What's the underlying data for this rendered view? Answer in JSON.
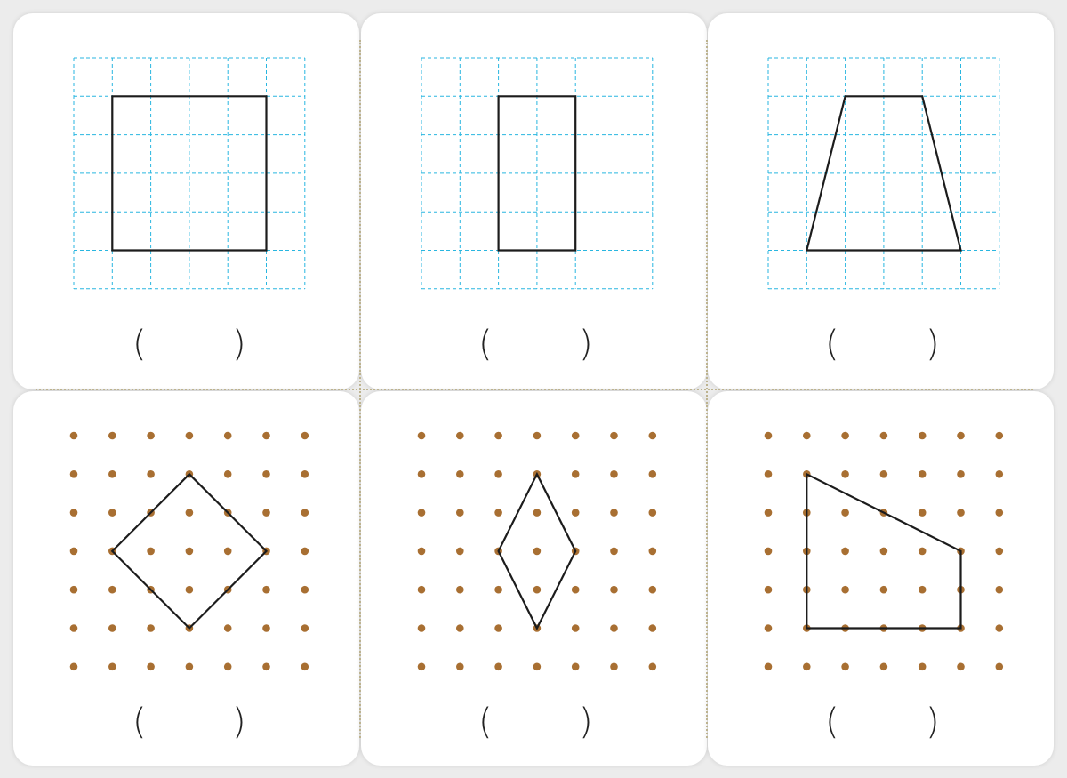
{
  "colors": {
    "grid_line": "#29b6e0",
    "dot": "#a86f32",
    "shape_stroke": "#1c1c1c",
    "card_bg": "#ffffff",
    "page_bg": "#ececec",
    "divider": "#bdb38f"
  },
  "answer_blank": {
    "open_paren": "(",
    "close_paren": ")"
  },
  "problems": [
    {
      "board": "grid",
      "shape": "square",
      "vertices": [
        [
          1,
          1
        ],
        [
          5,
          1
        ],
        [
          5,
          5
        ],
        [
          1,
          5
        ]
      ]
    },
    {
      "board": "grid",
      "shape": "rectangle",
      "vertices": [
        [
          2,
          1
        ],
        [
          4,
          1
        ],
        [
          4,
          5
        ],
        [
          2,
          5
        ]
      ]
    },
    {
      "board": "grid",
      "shape": "trapezoid",
      "vertices": [
        [
          2,
          1
        ],
        [
          4,
          1
        ],
        [
          5,
          5
        ],
        [
          1,
          5
        ]
      ]
    },
    {
      "board": "dots",
      "shape": "square-rotated",
      "vertices": [
        [
          3,
          1
        ],
        [
          5,
          3
        ],
        [
          3,
          5
        ],
        [
          1,
          3
        ]
      ]
    },
    {
      "board": "dots",
      "shape": "rhombus",
      "vertices": [
        [
          3,
          1
        ],
        [
          4,
          3
        ],
        [
          3,
          5
        ],
        [
          2,
          3
        ]
      ]
    },
    {
      "board": "dots",
      "shape": "quadrilateral",
      "vertices": [
        [
          1,
          1
        ],
        [
          5,
          3
        ],
        [
          5,
          5
        ],
        [
          1,
          5
        ]
      ]
    }
  ]
}
